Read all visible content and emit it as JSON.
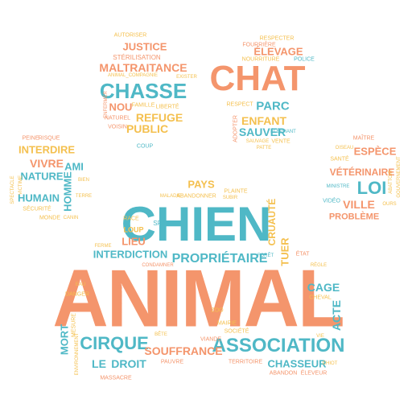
{
  "words": {
    "animal": "ANIMAL",
    "chien": "CHIEN",
    "chat": "CHAT",
    "chasse": "CHASSE",
    "association": "ASSOCIATION",
    "cirque": "CIRQUE",
    "loi": "LOI",
    "proprietaire": "PROPRIÉTAIRE",
    "justice": "JUSTICE",
    "maltraitance": "MALTRAITANCE",
    "elevage": "ÉLEVAGE",
    "interdire": "INTERDIRE",
    "vivre": "VIVRE",
    "ami": "AMI",
    "nature": "NATURE",
    "humain": "HUMAIN",
    "homme": "HOMME",
    "refuge": "REFUGE",
    "public": "PUBLIC",
    "nou": "NOU",
    "parc": "PARC",
    "enfant": "ENFANT",
    "sauver": "SAUVER",
    "espece": "ESPÈCE",
    "veterinaire": "VÉTÉRINAIRE",
    "ville": "VILLE",
    "probleme": "PROBLÈME",
    "interdiction": "INTERDICTION",
    "lieu": "LIEU",
    "tuer": "TUER",
    "cruaute": "CRUAUTÉ",
    "cage": "CAGE",
    "souffrance": "SOUFFRANCE",
    "droit": "DROIT",
    "mort": "MORT",
    "le": "LE",
    "chasseur": "CHASSEUR",
    "acte": "ACTE",
    "pays": "PAYS",
    "autoriser": "AUTORISER",
    "sterilisation": "STÉRILISATION",
    "respecter": "RESPECTER",
    "nourriture": "NOURRITURE",
    "police": "POLICE",
    "securite": "SÉCURITÉ",
    "maitre": "MAÎTRE",
    "sante": "SANTÉ",
    "ministre": "MINISTRE",
    "abattoir": "ABATTOIR",
    "gouvernement": "GOUVERNEMENT",
    "loup": "LOUP",
    "race": "RACE",
    "spa": "SPA",
    "zoo": "ZOO",
    "mairie": "MAIRIE",
    "societe": "SOCIÉTÉ",
    "viande": "VIANDE",
    "pauvre": "PAUVRE",
    "massacre": "MASSACRE",
    "famille": "FAMILLE",
    "liberte": "LIBERTÉ",
    "peine": "PEINE",
    "risque": "RISQUE",
    "monde": "MONDE",
    "canin": "CANIN",
    "bien": "BIEN",
    "terre": "TERRE",
    "oiseau": "OISEAU",
    "ours": "OURS",
    "video": "VIDÉO",
    "respect": "RESPECT",
    "fourriere": "FOURRIÈRE",
    "adopter": "ADOPTER",
    "plainte": "PLAINTE",
    "subir": "SUBIR",
    "maladie": "MALADIE",
    "abandonner": "ABANDONNER",
    "proteger": "PROTÉGER",
    "environnement": "ENVIRONNEMENT",
    "chiot": "CHIOT",
    "eleveur": "ÉLEVEUR",
    "abandon": "ABANDON",
    "territoire": "TERRITOIRE",
    "cheval": "CHEVAL",
    "ferme": "FERME",
    "danger": "DANGER",
    "etat": "ÉTAT",
    "regle": "RÈGLE",
    "foret": "FORÊT",
    "coup": "COUP",
    "animal_compagnie": "ANIMAL_COMPAGNIE",
    "enfermer": "ENFERMER",
    "sauvage": "SAUVAGE",
    "vente": "VENTE",
    "voisin": "VOISIN",
    "naturel": "NATUREL",
    "existe": "EXISTER",
    "condamner": "CONDAMNER",
    "elephant": "ÉLÉPHANT",
    "citoyen": "CITOYEN",
    "patte": "PATTE",
    "spectacle": "SPECTACLE",
    "victime": "VICTIME",
    "eau": "EAU",
    "bete": "BÊTE",
    "vie": "VIE",
    "mesure": "MESURE"
  },
  "colors": {
    "orange": "#f4956c",
    "teal": "#4fb8c6",
    "yellow": "#f4c04f",
    "blue": "#4a7fb4"
  }
}
